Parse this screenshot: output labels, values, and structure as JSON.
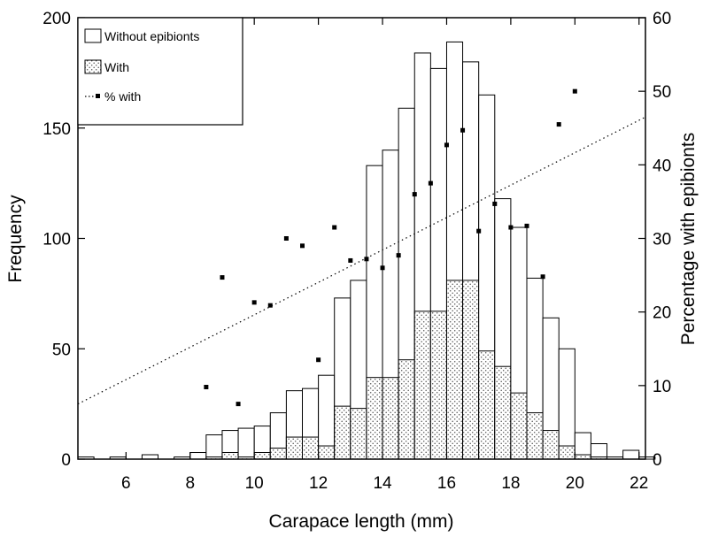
{
  "chart_data": {
    "type": "bar",
    "xlabel": "Carapace length (mm)",
    "ylabel": "Frequency",
    "y2label": "Percentage with epibionts",
    "xlim": [
      4.5,
      22.2
    ],
    "ylim": [
      0,
      200
    ],
    "y2lim": [
      0,
      60
    ],
    "xticks": [
      "6",
      "8",
      "10",
      "12",
      "14",
      "16",
      "18",
      "20",
      "22"
    ],
    "yticks": [
      "0",
      "50",
      "100",
      "150",
      "200"
    ],
    "y2ticks": [
      "0",
      "10",
      "20",
      "30",
      "40",
      "50",
      "60"
    ],
    "bin_width": 0.5,
    "bins_start": [
      4.5,
      5.0,
      5.5,
      6.0,
      6.5,
      7.0,
      7.5,
      8.0,
      8.5,
      9.0,
      9.5,
      10.0,
      10.5,
      11.0,
      11.5,
      12.0,
      12.5,
      13.0,
      13.5,
      14.0,
      14.5,
      15.0,
      15.5,
      16.0,
      16.5,
      17.0,
      17.5,
      18.0,
      18.5,
      19.0,
      19.5,
      20.0,
      20.5,
      21.0,
      21.5,
      22.0
    ],
    "series": [
      {
        "name": "Without epibionts",
        "values": [
          1,
          0,
          1,
          0,
          2,
          0,
          1,
          3,
          11,
          13,
          14,
          15,
          21,
          31,
          32,
          38,
          73,
          81,
          133,
          140,
          159,
          184,
          177,
          189,
          180,
          165,
          118,
          105,
          82,
          64,
          50,
          12,
          7,
          1,
          4,
          1
        ]
      },
      {
        "name": "With",
        "values": [
          0,
          0,
          0,
          0,
          0,
          0,
          0,
          0,
          1,
          3,
          1,
          3,
          5,
          10,
          10,
          6,
          24,
          23,
          37,
          37,
          45,
          67,
          67,
          81,
          81,
          49,
          42,
          30,
          21,
          13,
          6,
          2,
          1,
          0,
          0,
          0
        ]
      }
    ],
    "percent_series": {
      "name": "% with",
      "points": [
        {
          "x": 8.5,
          "y": 9.8
        },
        {
          "x": 9.0,
          "y": 24.7
        },
        {
          "x": 9.5,
          "y": 7.5
        },
        {
          "x": 10.0,
          "y": 21.3
        },
        {
          "x": 10.5,
          "y": 20.9
        },
        {
          "x": 11.0,
          "y": 30.0
        },
        {
          "x": 11.5,
          "y": 29.0
        },
        {
          "x": 12.0,
          "y": 13.5
        },
        {
          "x": 12.5,
          "y": 31.5
        },
        {
          "x": 13.0,
          "y": 27.0
        },
        {
          "x": 13.5,
          "y": 27.2
        },
        {
          "x": 14.0,
          "y": 26.0
        },
        {
          "x": 14.5,
          "y": 27.7
        },
        {
          "x": 15.0,
          "y": 36.0
        },
        {
          "x": 15.5,
          "y": 37.5
        },
        {
          "x": 16.0,
          "y": 42.7
        },
        {
          "x": 16.5,
          "y": 44.7
        },
        {
          "x": 17.0,
          "y": 31.0
        },
        {
          "x": 17.5,
          "y": 34.7
        },
        {
          "x": 18.0,
          "y": 31.5
        },
        {
          "x": 18.5,
          "y": 31.7
        },
        {
          "x": 19.0,
          "y": 24.8
        },
        {
          "x": 19.5,
          "y": 45.5
        },
        {
          "x": 20.0,
          "y": 50.0
        }
      ],
      "trend": {
        "x_start": 4.5,
        "y_start": 7.5,
        "x_end": 22.2,
        "y_end": 46.5
      }
    },
    "legend": {
      "position": "top-left",
      "entries": [
        "Without epibionts",
        "With",
        "% with"
      ]
    },
    "grid": false
  }
}
